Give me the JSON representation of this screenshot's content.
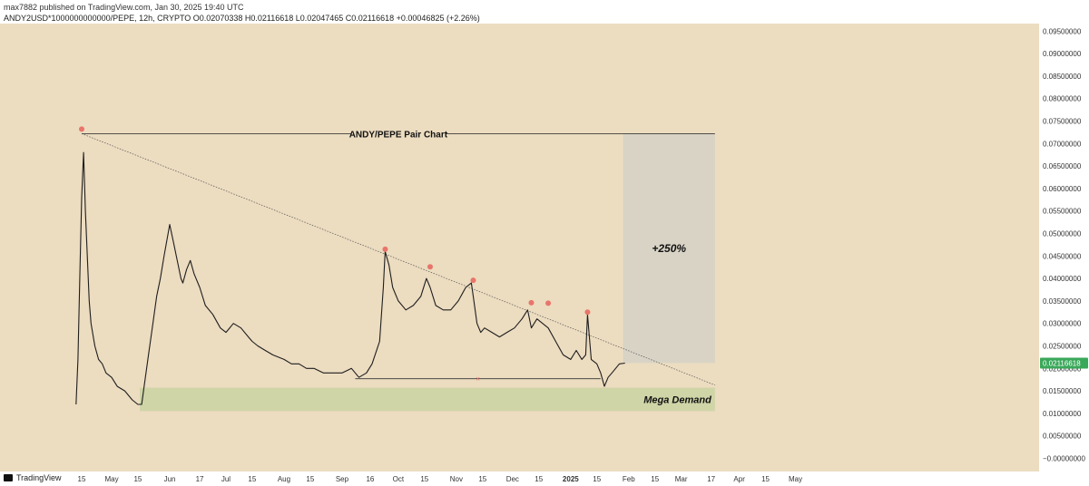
{
  "header": {
    "publisher": "max7882 published on TradingView.com, Jan 30, 2025 19:40 UTC",
    "symbol_line": "ANDY2USD*1000000000000/PEPE, 12h, CRYPTO  O0.02070338  H0.02116618  L0.02047465  C0.02116618  +0.00046825 (+2.26%)"
  },
  "footer": {
    "brand": "TradingView"
  },
  "chart_data": {
    "type": "line",
    "title": "ANDY/PEPE Pair Chart",
    "ylim": [
      0,
      0.1
    ],
    "y_ticks": [
      "0.09500000",
      "0.09000000",
      "0.08500000",
      "0.08000000",
      "0.07500000",
      "0.07000000",
      "0.06500000",
      "0.06000000",
      "0.05500000",
      "0.05000000",
      "0.04500000",
      "0.04000000",
      "0.03500000",
      "0.03000000",
      "0.02500000",
      "0.02000000",
      "0.01500000",
      "0.01000000",
      "0.00500000",
      "−0.00000000"
    ],
    "y_tick_values": [
      0.095,
      0.09,
      0.085,
      0.08,
      0.075,
      0.07,
      0.065,
      0.06,
      0.055,
      0.05,
      0.045,
      0.04,
      0.035,
      0.03,
      0.025,
      0.02,
      0.015,
      0.01,
      0.005,
      0
    ],
    "x_ticks": [
      "15",
      "May",
      "15",
      "Jun",
      "17",
      "Jul",
      "15",
      "Aug",
      "15",
      "Sep",
      "16",
      "Oct",
      "15",
      "Nov",
      "15",
      "Dec",
      "15",
      "2025",
      "15",
      "Feb",
      "15",
      "Mar",
      "17",
      "Apr",
      "15",
      "May"
    ],
    "x_tick_dates": [
      "2024-04-15",
      "2024-05-01",
      "2024-05-15",
      "2024-06-01",
      "2024-06-17",
      "2024-07-01",
      "2024-07-15",
      "2024-08-01",
      "2024-08-15",
      "2024-09-01",
      "2024-09-16",
      "2024-10-01",
      "2024-10-15",
      "2024-11-01",
      "2024-11-15",
      "2024-12-01",
      "2024-12-15",
      "2025-01-01",
      "2025-01-15",
      "2025-02-01",
      "2025-02-15",
      "2025-03-01",
      "2025-03-17",
      "2025-04-01",
      "2025-04-15",
      "2025-05-01"
    ],
    "price_label": "0.02116618",
    "price": 0.02116618,
    "series": [
      {
        "dates": [
          "2024-04-12",
          "2024-04-13",
          "2024-04-14",
          "2024-04-15",
          "2024-04-16",
          "2024-04-17",
          "2024-04-18",
          "2024-04-19",
          "2024-04-20",
          "2024-04-22",
          "2024-04-24",
          "2024-04-26",
          "2024-04-28",
          "2024-05-01",
          "2024-05-04",
          "2024-05-08",
          "2024-05-12",
          "2024-05-15",
          "2024-05-17",
          "2024-05-19",
          "2024-05-21",
          "2024-05-23",
          "2024-05-25",
          "2024-05-27",
          "2024-05-29",
          "2024-06-01",
          "2024-06-03",
          "2024-06-05",
          "2024-06-07",
          "2024-06-08",
          "2024-06-10",
          "2024-06-12",
          "2024-06-14",
          "2024-06-17",
          "2024-06-20",
          "2024-06-24",
          "2024-06-28",
          "2024-07-01",
          "2024-07-05",
          "2024-07-09",
          "2024-07-13",
          "2024-07-15",
          "2024-07-18",
          "2024-07-22",
          "2024-07-26",
          "2024-08-01",
          "2024-08-05",
          "2024-08-09",
          "2024-08-13",
          "2024-08-17",
          "2024-08-22",
          "2024-08-26",
          "2024-09-01",
          "2024-09-06",
          "2024-09-10",
          "2024-09-14",
          "2024-09-17",
          "2024-09-21",
          "2024-09-23",
          "2024-09-24",
          "2024-09-26",
          "2024-09-28",
          "2024-10-01",
          "2024-10-05",
          "2024-10-09",
          "2024-10-13",
          "2024-10-16",
          "2024-10-18",
          "2024-10-21",
          "2024-10-25",
          "2024-10-29",
          "2024-11-02",
          "2024-11-06",
          "2024-11-09",
          "2024-11-10",
          "2024-11-12",
          "2024-11-14",
          "2024-11-16",
          "2024-11-20",
          "2024-11-24",
          "2024-11-28",
          "2024-12-02",
          "2024-12-06",
          "2024-12-09",
          "2024-12-11",
          "2024-12-14",
          "2024-12-17",
          "2024-12-20",
          "2024-12-24",
          "2024-12-28",
          "2025-01-01",
          "2025-01-04",
          "2025-01-07",
          "2025-01-09",
          "2025-01-10",
          "2025-01-12",
          "2025-01-15",
          "2025-01-17",
          "2025-01-19",
          "2025-01-21",
          "2025-01-23",
          "2025-01-25",
          "2025-01-27",
          "2025-01-30"
        ],
        "values": [
          0.012,
          0.022,
          0.04,
          0.058,
          0.068,
          0.055,
          0.045,
          0.035,
          0.03,
          0.025,
          0.022,
          0.021,
          0.019,
          0.018,
          0.016,
          0.015,
          0.013,
          0.012,
          0.012,
          0.018,
          0.024,
          0.03,
          0.036,
          0.04,
          0.045,
          0.052,
          0.048,
          0.044,
          0.04,
          0.039,
          0.042,
          0.044,
          0.041,
          0.038,
          0.034,
          0.032,
          0.029,
          0.028,
          0.03,
          0.029,
          0.027,
          0.026,
          0.025,
          0.024,
          0.023,
          0.022,
          0.021,
          0.021,
          0.02,
          0.02,
          0.019,
          0.019,
          0.019,
          0.02,
          0.018,
          0.019,
          0.021,
          0.026,
          0.038,
          0.046,
          0.043,
          0.038,
          0.035,
          0.033,
          0.034,
          0.036,
          0.04,
          0.038,
          0.034,
          0.033,
          0.033,
          0.035,
          0.038,
          0.039,
          0.036,
          0.03,
          0.028,
          0.029,
          0.028,
          0.027,
          0.028,
          0.029,
          0.031,
          0.033,
          0.029,
          0.031,
          0.03,
          0.029,
          0.026,
          0.023,
          0.022,
          0.024,
          0.022,
          0.023,
          0.032,
          0.022,
          0.021,
          0.019,
          0.016,
          0.018,
          0.019,
          0.02,
          0.021,
          0.02116618
        ]
      }
    ],
    "peak_markers": [
      {
        "date": "2024-04-15",
        "value": 0.0732
      },
      {
        "date": "2024-09-24",
        "value": 0.0465
      },
      {
        "date": "2024-10-18",
        "value": 0.0426
      },
      {
        "date": "2024-11-10",
        "value": 0.0396
      },
      {
        "date": "2024-12-11",
        "value": 0.0346
      },
      {
        "date": "2024-12-20",
        "value": 0.0345
      },
      {
        "date": "2025-01-10",
        "value": 0.0325
      }
    ],
    "resistance_line": {
      "from": {
        "date": "2024-04-15",
        "value": 0.0722
      },
      "to": {
        "date": "2025-03-19",
        "value": 0.0163
      }
    },
    "horizontal_line": {
      "value": 0.0722,
      "from": "2024-04-15",
      "to": "2025-03-19"
    },
    "support_line": {
      "value": 0.0177,
      "from": "2024-09-08",
      "to": "2025-01-17",
      "marker": "x"
    },
    "demand_zone": {
      "label": "Mega Demand",
      "top": 0.0157,
      "bottom": 0.0105,
      "from": "2024-05-16",
      "to": "2025-03-19",
      "color": "#cfd5a7"
    },
    "target_box": {
      "label": "+250%",
      "top": 0.0722,
      "bottom": 0.0212,
      "from": "2025-01-29",
      "to": "2025-03-19",
      "color": "#d8d3c5"
    },
    "colors": {
      "background": "#ecdcc0",
      "marker": "#e8756b",
      "price_tag": "#3aa85a",
      "candle": "#1e1e1e"
    }
  }
}
